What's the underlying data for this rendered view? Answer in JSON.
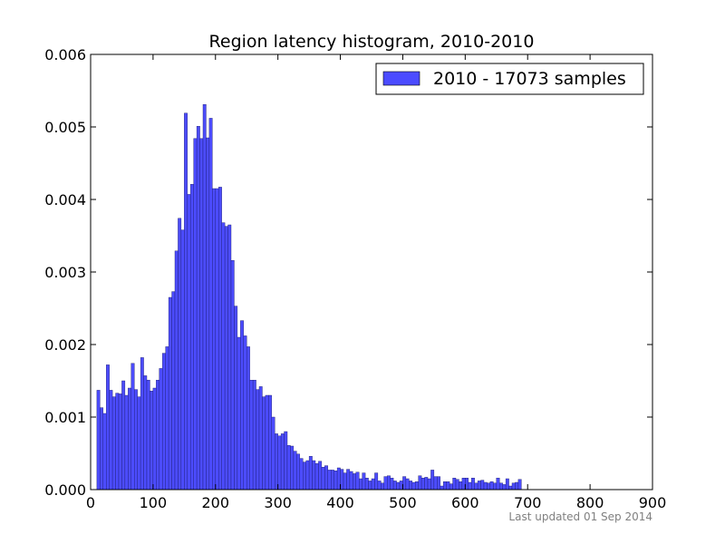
{
  "chart_data": {
    "type": "bar",
    "title": "Region latency histogram, 2010-2010",
    "xlabel": "",
    "ylabel": "",
    "xlim": [
      0,
      900
    ],
    "ylim": [
      0,
      0.006
    ],
    "x_ticks": [
      "0",
      "100",
      "200",
      "300",
      "400",
      "500",
      "600",
      "700",
      "800",
      "900"
    ],
    "y_ticks": [
      "0.000",
      "0.001",
      "0.002",
      "0.003",
      "0.004",
      "0.005",
      "0.006"
    ],
    "grid": false,
    "legend_position": "top-right",
    "bar_color": "#4c4cff",
    "bin_start": 10,
    "bin_width": 5,
    "series": [
      {
        "name": "2010 - 17073 samples",
        "values": [
          0.00137,
          0.00113,
          0.00105,
          0.00172,
          0.00137,
          0.00128,
          0.00133,
          0.00132,
          0.0015,
          0.0013,
          0.0014,
          0.00174,
          0.00138,
          0.00128,
          0.00182,
          0.00157,
          0.00151,
          0.00136,
          0.0014,
          0.00151,
          0.00167,
          0.00188,
          0.00197,
          0.00265,
          0.00273,
          0.00329,
          0.00374,
          0.00358,
          0.00519,
          0.00407,
          0.00421,
          0.00484,
          0.00501,
          0.00484,
          0.00531,
          0.00485,
          0.00512,
          0.00415,
          0.00415,
          0.00417,
          0.00368,
          0.00363,
          0.00365,
          0.00316,
          0.00253,
          0.0021,
          0.00233,
          0.00212,
          0.00197,
          0.00151,
          0.00151,
          0.00138,
          0.00142,
          0.00128,
          0.0013,
          0.0013,
          0.001,
          0.00077,
          0.00074,
          0.00077,
          0.0008,
          0.00061,
          0.0006,
          0.00053,
          0.00049,
          0.00043,
          0.00038,
          0.0004,
          0.00046,
          0.0004,
          0.00036,
          0.00039,
          0.00031,
          0.00033,
          0.00027,
          0.00027,
          0.00026,
          0.0003,
          0.00028,
          0.00023,
          0.00028,
          0.00025,
          0.00022,
          0.00024,
          0.00015,
          0.00023,
          0.00016,
          0.00012,
          0.00015,
          0.00023,
          0.00012,
          9e-05,
          0.00018,
          0.00019,
          0.00016,
          0.00012,
          0.0001,
          0.00012,
          0.00018,
          0.00015,
          0.00012,
          0.0001,
          0.00011,
          0.00019,
          0.00016,
          0.00017,
          0.00015,
          0.00027,
          0.00018,
          0.00018,
          5e-05,
          0.00011,
          0.00011,
          8e-05,
          0.00016,
          0.00014,
          0.00011,
          0.00016,
          0.00016,
          0.0001,
          0.00016,
          9e-05,
          0.00012,
          0.00013,
          0.0001,
          9e-05,
          0.00011,
          9e-05,
          0.00016,
          9e-05,
          7e-05,
          0.00015,
          5e-05,
          9e-05,
          0.0001,
          0.00014
        ]
      }
    ]
  },
  "footer": {
    "text": "Last updated 01 Sep 2014"
  }
}
